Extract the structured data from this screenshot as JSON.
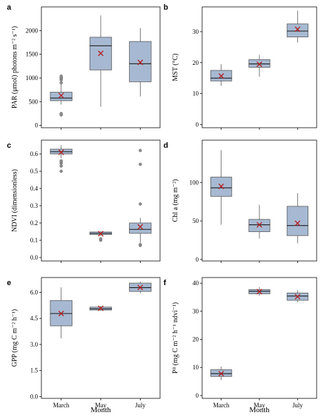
{
  "figure": {
    "xlabel": "Month"
  },
  "chart_data": [
    {
      "panel": "a",
      "type": "box",
      "categories": [
        "March",
        "May",
        "July"
      ],
      "ylabel": "PAR (μmol) photons m⁻² s⁻¹)",
      "ylim": [
        -50,
        2500
      ],
      "yticks": [
        0,
        500,
        1000,
        1500,
        2000
      ],
      "show_x_ticklabels": false,
      "boxes": [
        {
          "whislo": 440,
          "q1": 520,
          "med": 575,
          "q3": 700,
          "whishi": 870,
          "mean": 630,
          "outliers": [
            220,
            250,
            900,
            960,
            990,
            1010,
            1040
          ]
        },
        {
          "whislo": 390,
          "q1": 1170,
          "med": 1680,
          "q3": 1860,
          "whishi": 2320,
          "mean": 1520,
          "outliers": []
        },
        {
          "whislo": 610,
          "q1": 920,
          "med": 1300,
          "q3": 1770,
          "whishi": 2050,
          "mean": 1330,
          "outliers": []
        }
      ]
    },
    {
      "panel": "b",
      "type": "box",
      "categories": [
        "March",
        "May",
        "July"
      ],
      "ylabel": "MST (°C)",
      "ylim": [
        -1,
        38
      ],
      "yticks": [
        0,
        10,
        20,
        30
      ],
      "show_x_ticklabels": false,
      "boxes": [
        {
          "whislo": 12.5,
          "q1": 14.1,
          "med": 15.0,
          "q3": 17.5,
          "whishi": 19.5,
          "mean": 15.7,
          "outliers": []
        },
        {
          "whislo": 15.5,
          "q1": 18.5,
          "med": 19.6,
          "q3": 21.0,
          "whishi": 22.5,
          "mean": 19.5,
          "outliers": []
        },
        {
          "whislo": 26.5,
          "q1": 28.3,
          "med": 30.2,
          "q3": 32.5,
          "whishi": 36.8,
          "mean": 30.8,
          "outliers": []
        }
      ]
    },
    {
      "panel": "c",
      "type": "box",
      "categories": [
        "March",
        "May",
        "July"
      ],
      "ylabel": "NDVI (dimensionless)",
      "ylim": [
        -0.02,
        0.68
      ],
      "yticks": [
        0.0,
        0.1,
        0.2,
        0.3,
        0.4,
        0.5,
        0.6
      ],
      "tick_decimals": 1,
      "show_x_ticklabels": false,
      "boxes": [
        {
          "whislo": 0.575,
          "q1": 0.6,
          "med": 0.613,
          "q3": 0.628,
          "whishi": 0.65,
          "mean": 0.61,
          "outliers": [
            0.5,
            0.53,
            0.545,
            0.555,
            0.56
          ]
        },
        {
          "whislo": 0.125,
          "q1": 0.133,
          "med": 0.14,
          "q3": 0.148,
          "whishi": 0.152,
          "mean": 0.138,
          "outliers": [
            0.1,
            0.108
          ]
        },
        {
          "whislo": 0.085,
          "q1": 0.14,
          "med": 0.163,
          "q3": 0.2,
          "whishi": 0.23,
          "mean": 0.178,
          "outliers": [
            0.07,
            0.075,
            0.31,
            0.54,
            0.62
          ]
        }
      ]
    },
    {
      "panel": "d",
      "type": "box",
      "categories": [
        "March",
        "May",
        "July"
      ],
      "ylabel": "Chl a (mg m⁻²)",
      "ylim": [
        -2,
        155
      ],
      "yticks": [
        0,
        50,
        100
      ],
      "show_x_ticklabels": false,
      "boxes": [
        {
          "whislo": 45,
          "q1": 82,
          "med": 93,
          "q3": 107,
          "whishi": 142,
          "mean": 95,
          "outliers": []
        },
        {
          "whislo": 27,
          "q1": 36,
          "med": 45,
          "q3": 52,
          "whishi": 71,
          "mean": 45,
          "outliers": []
        },
        {
          "whislo": 21,
          "q1": 31,
          "med": 44,
          "q3": 69,
          "whishi": 86,
          "mean": 47,
          "outliers": []
        }
      ]
    },
    {
      "panel": "e",
      "type": "box",
      "categories": [
        "March",
        "May",
        "July"
      ],
      "ylabel": "GPP (mg C m⁻² h⁻¹)",
      "ylim": [
        -0.1,
        6.85
      ],
      "yticks": [
        0.0,
        1.5,
        3.0,
        4.5,
        6.0
      ],
      "tick_decimals": 1,
      "show_x_ticklabels": true,
      "boxes": [
        {
          "whislo": 3.35,
          "q1": 4.07,
          "med": 4.78,
          "q3": 5.53,
          "whishi": 6.28,
          "mean": 4.78,
          "outliers": []
        },
        {
          "whislo": 4.93,
          "q1": 4.98,
          "med": 5.05,
          "q3": 5.15,
          "whishi": 5.22,
          "mean": 5.08,
          "outliers": []
        },
        {
          "whislo": 5.95,
          "q1": 6.05,
          "med": 6.27,
          "q3": 6.53,
          "whishi": 6.62,
          "mean": 6.28,
          "outliers": []
        }
      ]
    },
    {
      "panel": "f",
      "type": "box",
      "categories": [
        "March",
        "May",
        "July"
      ],
      "ylabel": "Pᴮ (mg C m⁻² h⁻¹ ndvi⁻¹)",
      "ylim": [
        -1,
        42
      ],
      "yticks": [
        0,
        10,
        20,
        30,
        40
      ],
      "show_x_ticklabels": true,
      "boxes": [
        {
          "whislo": 5.5,
          "q1": 6.8,
          "med": 7.8,
          "q3": 9.2,
          "whishi": 10.3,
          "mean": 7.8,
          "outliers": []
        },
        {
          "whislo": 35.5,
          "q1": 36.2,
          "med": 37.1,
          "q3": 37.7,
          "whishi": 38.6,
          "mean": 37.0,
          "outliers": []
        },
        {
          "whislo": 33.2,
          "q1": 33.9,
          "med": 35.4,
          "q3": 36.5,
          "whishi": 37.5,
          "mean": 35.2,
          "outliers": []
        }
      ]
    }
  ],
  "style": {
    "box_fill": "#a7b9d2",
    "box_stroke": "#555555",
    "median_color": "#1a1a1a",
    "mean_marker_color": "#b22222",
    "outlier_color": "#8c8c8c",
    "axis_color": "#000000"
  }
}
